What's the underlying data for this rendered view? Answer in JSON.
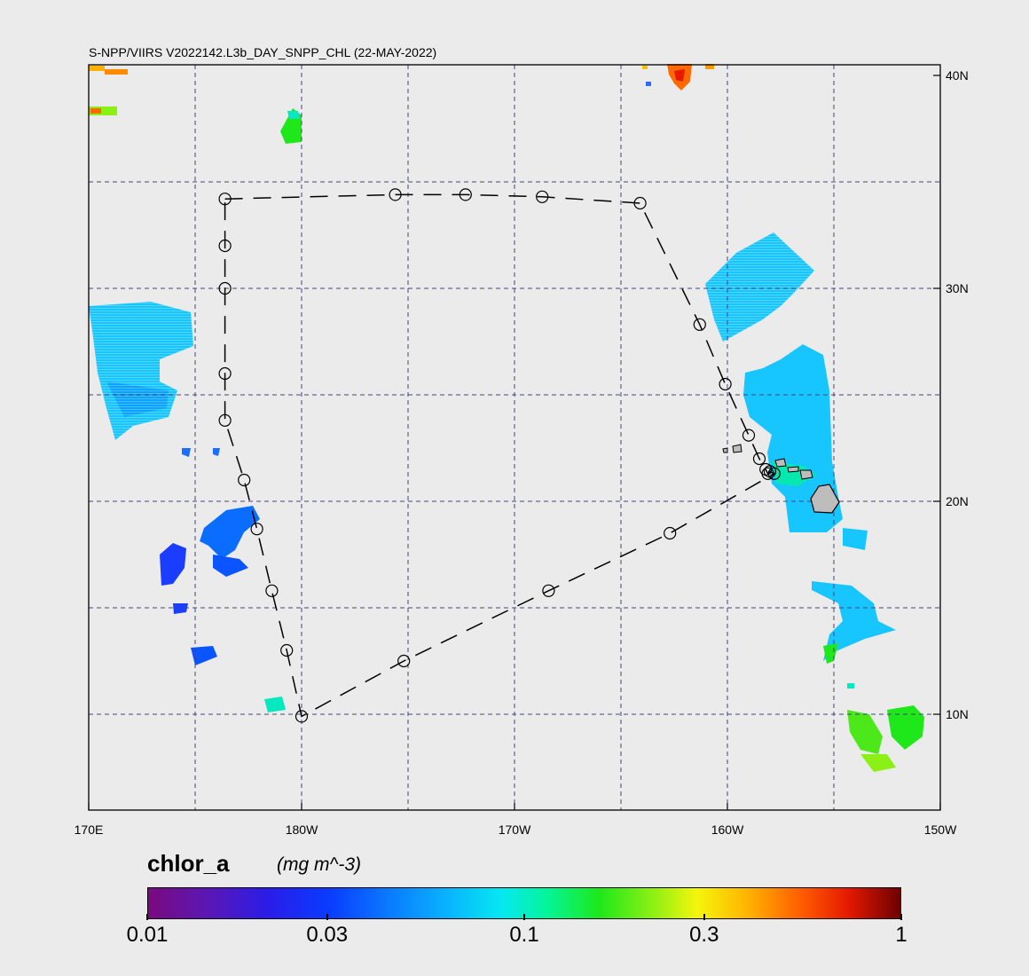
{
  "title": "S-NPP/VIIRS V2022142.L3b_DAY_SNPP_CHL (22-MAY-2022)",
  "map": {
    "lon_min": 170,
    "lon_max": 210,
    "lat_min": 5.5,
    "lat_max": 40.5,
    "grid_lons": [
      175,
      180,
      185,
      190,
      195,
      200,
      205
    ],
    "grid_lats": [
      10,
      15,
      20,
      25,
      30,
      35
    ],
    "x_ticks": [
      {
        "lon": 170,
        "label": "170E"
      },
      {
        "lon": 180,
        "label": "180W"
      },
      {
        "lon": 190,
        "label": "170W"
      },
      {
        "lon": 200,
        "label": "160W"
      },
      {
        "lon": 210,
        "label": "150W"
      }
    ],
    "y_ticks": [
      {
        "lat": 40,
        "label": "40N"
      },
      {
        "lat": 30,
        "label": "30N"
      },
      {
        "lat": 20,
        "label": "20N"
      },
      {
        "lat": 10,
        "label": "10N"
      }
    ],
    "track_waypoints": [
      {
        "lon": 176.4,
        "lat": 34.2
      },
      {
        "lon": 184.4,
        "lat": 34.4
      },
      {
        "lon": 187.7,
        "lat": 34.4
      },
      {
        "lon": 191.3,
        "lat": 34.3
      },
      {
        "lon": 195.9,
        "lat": 34.0
      },
      {
        "lon": 198.7,
        "lat": 28.3
      },
      {
        "lon": 199.9,
        "lat": 25.5
      },
      {
        "lon": 201.0,
        "lat": 23.1
      },
      {
        "lon": 201.5,
        "lat": 22.0
      },
      {
        "lon": 201.8,
        "lat": 21.5
      },
      {
        "lon": 201.9,
        "lat": 21.3
      },
      {
        "lon": 202.0,
        "lat": 21.4
      },
      {
        "lon": 202.2,
        "lat": 21.3
      },
      {
        "lon": 197.3,
        "lat": 18.5
      },
      {
        "lon": 191.6,
        "lat": 15.8
      },
      {
        "lon": 184.8,
        "lat": 12.5
      },
      {
        "lon": 180.0,
        "lat": 9.9
      },
      {
        "lon": 179.3,
        "lat": 13.0
      },
      {
        "lon": 178.6,
        "lat": 15.8
      },
      {
        "lon": 177.9,
        "lat": 18.7
      },
      {
        "lon": 177.3,
        "lat": 21.0
      },
      {
        "lon": 176.4,
        "lat": 23.8
      },
      {
        "lon": 176.4,
        "lat": 26.0
      },
      {
        "lon": 176.4,
        "lat": 30.0
      },
      {
        "lon": 176.4,
        "lat": 32.0
      },
      {
        "lon": 176.4,
        "lat": 34.2
      }
    ],
    "colors": {
      "background": "#ebebeb",
      "grid": "#44447a",
      "track": "#000000",
      "land": "#bdbdbd"
    }
  },
  "colorbar": {
    "variable": "chlor_a",
    "units": "(mg m^-3)",
    "scale": "log",
    "range": [
      0.01,
      1
    ],
    "ticks": [
      {
        "value": 0.01,
        "label": "0.01"
      },
      {
        "value": 0.03,
        "label": "0.03"
      },
      {
        "value": 0.1,
        "label": "0.1"
      },
      {
        "value": 0.3,
        "label": "0.3"
      },
      {
        "value": 1,
        "label": "1"
      }
    ]
  }
}
